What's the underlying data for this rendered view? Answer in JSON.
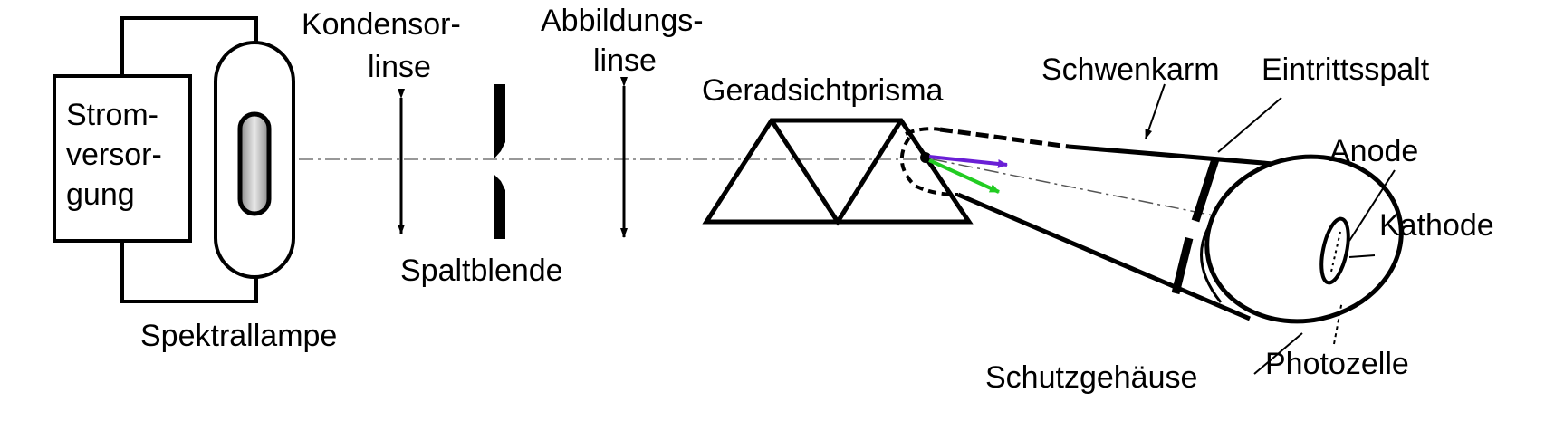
{
  "labels": {
    "strom_1": "Strom-",
    "strom_2": "versor-",
    "strom_3": "gung",
    "kondensor_1": "Kondensor-",
    "kondensor_2": "linse",
    "abbildungs_1": "Abbildungs-",
    "abbildungs_2": "linse",
    "geradsicht": "Geradsichtprisma",
    "schwenkarm": "Schwenkarm",
    "eintrittsspalt": "Eintrittsspalt",
    "anode": "Anode",
    "kathode": "Kathode",
    "spaltblende": "Spaltblende",
    "spektrallampe": "Spektrallampe",
    "schutzgehaeuse": "Schutzgehäuse",
    "photozelle": "Photozelle"
  },
  "colors": {
    "line": "#000000",
    "optical_axis": "#777777",
    "ray_violet": "#6a1fd6",
    "ray_green": "#22cc22",
    "lamp_glow": "#bbbbbb"
  }
}
